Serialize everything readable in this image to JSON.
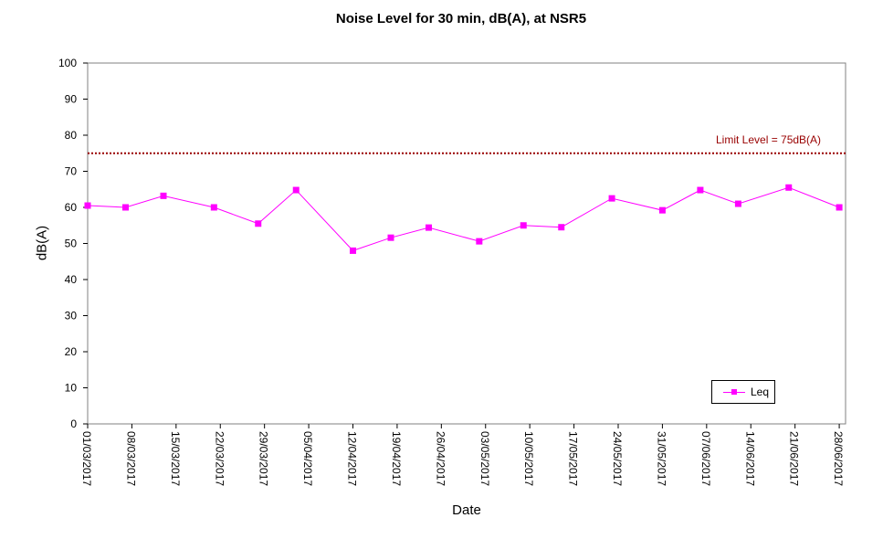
{
  "chart_data": {
    "type": "line",
    "title": "Noise Level for 30 min, dB(A), at NSR5",
    "xlabel": "Date",
    "ylabel": "dB(A)",
    "ylim": [
      0,
      100
    ],
    "yticks": [
      0,
      10,
      20,
      30,
      40,
      50,
      60,
      70,
      80,
      90,
      100
    ],
    "xlim": [
      "01/03/2017",
      "29/06/2017"
    ],
    "xticks": [
      "01/03/2017",
      "08/03/2017",
      "15/03/2017",
      "22/03/2017",
      "29/03/2017",
      "05/04/2017",
      "12/04/2017",
      "19/04/2017",
      "26/04/2017",
      "03/05/2017",
      "10/05/2017",
      "17/05/2017",
      "24/05/2017",
      "31/05/2017",
      "07/06/2017",
      "14/06/2017",
      "21/06/2017",
      "28/06/2017"
    ],
    "grid": false,
    "legend_position": "bottom-right",
    "series": [
      {
        "name": "Leq",
        "color": "#ff00ff",
        "points": [
          {
            "x": "01/03/2017",
            "y": 60.5
          },
          {
            "x": "07/03/2017",
            "y": 60.0
          },
          {
            "x": "13/03/2017",
            "y": 63.2
          },
          {
            "x": "21/03/2017",
            "y": 60.0
          },
          {
            "x": "28/03/2017",
            "y": 55.5
          },
          {
            "x": "03/04/2017",
            "y": 64.8
          },
          {
            "x": "12/04/2017",
            "y": 48.0
          },
          {
            "x": "18/04/2017",
            "y": 51.6
          },
          {
            "x": "24/04/2017",
            "y": 54.4
          },
          {
            "x": "02/05/2017",
            "y": 50.6
          },
          {
            "x": "09/05/2017",
            "y": 55.0
          },
          {
            "x": "15/05/2017",
            "y": 54.5
          },
          {
            "x": "23/05/2017",
            "y": 62.5
          },
          {
            "x": "31/05/2017",
            "y": 59.2
          },
          {
            "x": "06/06/2017",
            "y": 64.8
          },
          {
            "x": "12/06/2017",
            "y": 61.0
          },
          {
            "x": "20/06/2017",
            "y": 65.5
          },
          {
            "x": "28/06/2017",
            "y": 60.0
          }
        ]
      }
    ],
    "limit_line": {
      "y": 75,
      "label": "Limit Level  = 75dB(A)",
      "color": "#990000"
    }
  }
}
